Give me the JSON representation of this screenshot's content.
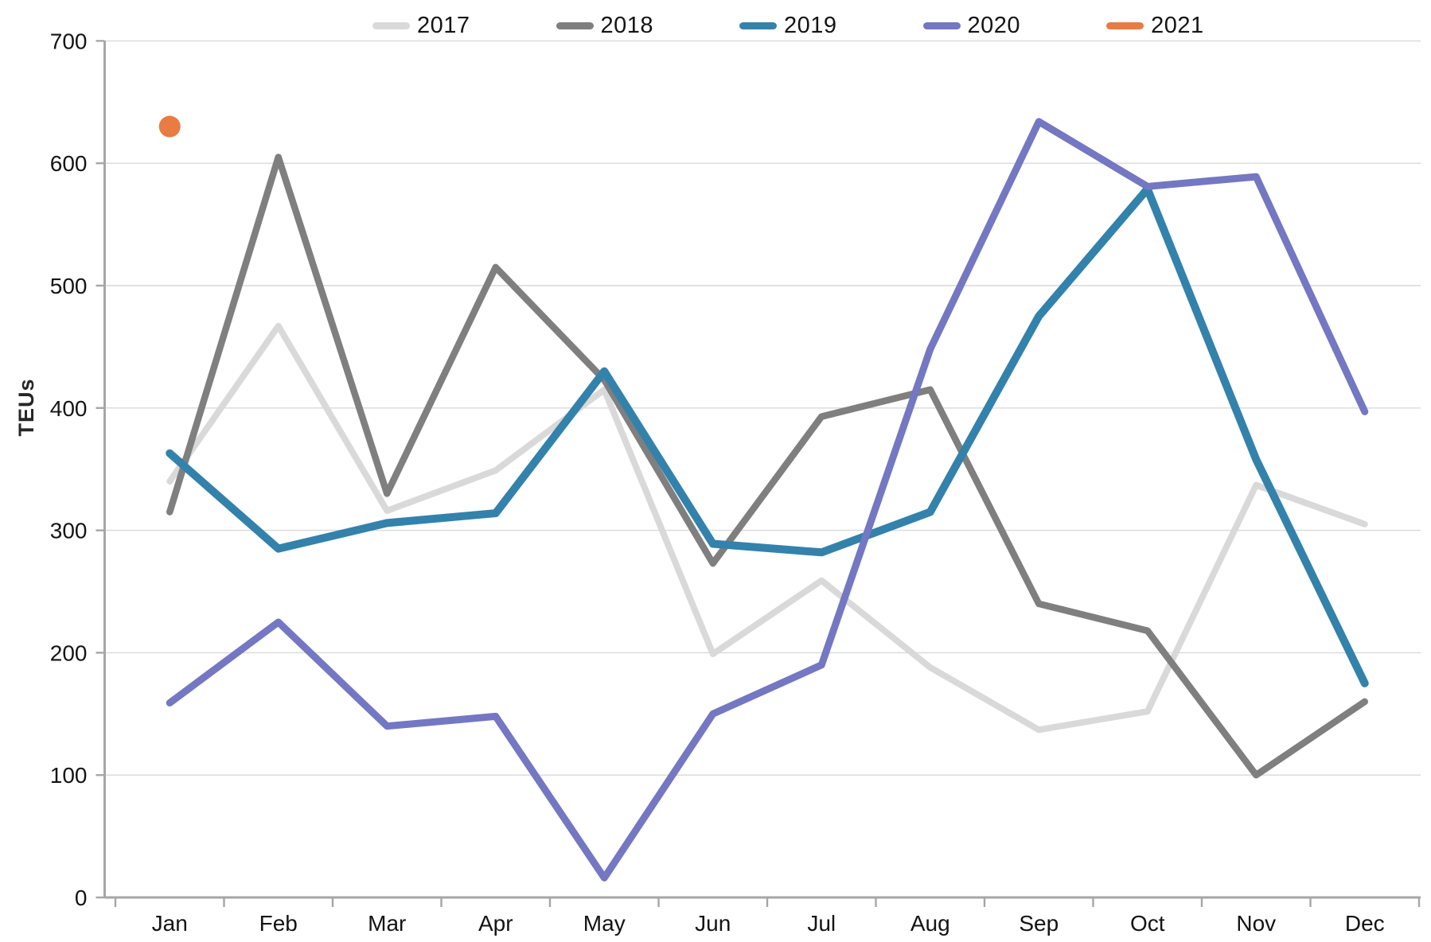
{
  "chart_data": {
    "type": "line",
    "title": "",
    "xlabel": "",
    "ylabel": "TEUs",
    "categories": [
      "Jan",
      "Feb",
      "Mar",
      "Apr",
      "May",
      "Jun",
      "Jul",
      "Aug",
      "Sep",
      "Oct",
      "Nov",
      "Dec"
    ],
    "y_axis": {
      "min": 0,
      "max": 700,
      "tick_step": 100,
      "tick_labels": [
        "0",
        "100",
        "200",
        "300",
        "400",
        "500",
        "600",
        "700"
      ]
    },
    "grid": "horizontal",
    "legend_position": "top",
    "series": [
      {
        "name": "2017",
        "color": "#d9d9d9",
        "stroke_width": 8,
        "style": "line",
        "values": [
          340,
          467,
          316,
          349,
          415,
          199,
          259,
          188,
          137,
          152,
          337,
          305
        ]
      },
      {
        "name": "2018",
        "color": "#7f7f7f",
        "stroke_width": 8.5,
        "style": "line",
        "values": [
          315,
          605,
          330,
          515,
          423,
          273,
          393,
          415,
          240,
          218,
          100,
          160
        ]
      },
      {
        "name": "2019",
        "color": "#3382ab",
        "stroke_width": 10,
        "style": "line",
        "values": [
          363,
          285,
          306,
          314,
          430,
          289,
          282,
          315,
          475,
          579,
          358,
          175
        ]
      },
      {
        "name": "2020",
        "color": "#7477c2",
        "stroke_width": 9,
        "style": "line",
        "values": [
          159,
          225,
          140,
          148,
          16,
          150,
          190,
          448,
          634,
          581,
          589,
          397
        ]
      },
      {
        "name": "2021",
        "color": "#e87c43",
        "stroke_width": 9,
        "style": "point",
        "point_radius": 13.5,
        "values": [
          630,
          null,
          null,
          null,
          null,
          null,
          null,
          null,
          null,
          null,
          null,
          null
        ]
      }
    ]
  }
}
